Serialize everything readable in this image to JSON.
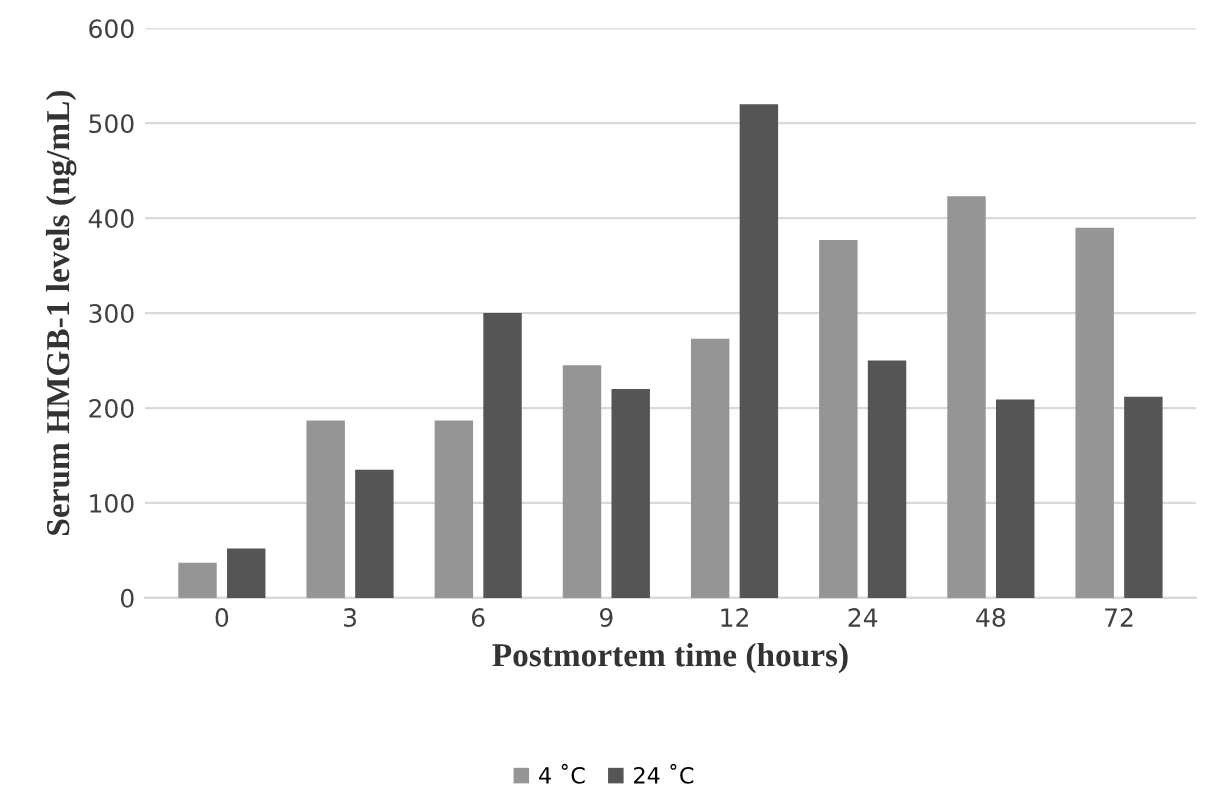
{
  "chart_data": {
    "type": "bar",
    "xlabel": "Postmortem time (hours)",
    "ylabel": "Serum HMGB-1 levels (ng/mL)",
    "categories": [
      "0",
      "3",
      "6",
      "9",
      "12",
      "24",
      "48",
      "72"
    ],
    "series": [
      {
        "name": "4 ˚C",
        "color": "#959595",
        "values": [
          37,
          187,
          187,
          245,
          273,
          377,
          423,
          390
        ]
      },
      {
        "name": "24 ˚C",
        "color": "#555555",
        "values": [
          52,
          135,
          300,
          220,
          520,
          250,
          209,
          212
        ]
      }
    ],
    "ylim": [
      0,
      600
    ],
    "yticks": [
      0,
      100,
      200,
      300,
      400,
      500,
      600
    ],
    "grid": "y",
    "legend": "bottom"
  }
}
